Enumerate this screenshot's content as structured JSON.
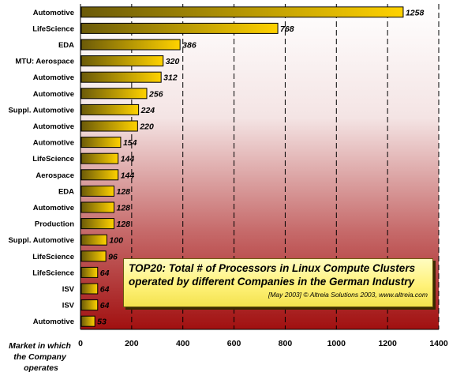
{
  "chart_data": {
    "type": "bar",
    "orientation": "horizontal",
    "categories": [
      "Automotive",
      "LifeScience",
      "EDA",
      "MTU: Aerospace",
      "Automotive",
      "Automotive",
      "Suppl. Automotive",
      "Automotive",
      "Automotive",
      "LifeScience",
      "Aerospace",
      "EDA",
      "Automotive",
      "Production",
      "Suppl. Automotive",
      "LifeScience",
      "LifeScience",
      "ISV",
      "ISV",
      "Automotive"
    ],
    "values": [
      1258,
      768,
      386,
      320,
      312,
      256,
      224,
      220,
      154,
      144,
      144,
      128,
      128,
      128,
      100,
      96,
      64,
      64,
      64,
      53
    ],
    "xlabel": "Market in which the Company operates",
    "xlim": [
      0,
      1400
    ],
    "xticks": [
      0,
      200,
      400,
      600,
      800,
      1000,
      1200,
      1400
    ],
    "grid": "vertical dashed",
    "colors": {
      "bar_light": "#ffd200",
      "bar_dark": "#6b5a08",
      "background_top": "#ffffff",
      "background_bottom": "#a11010"
    }
  },
  "annotation": {
    "title_line1": "TOP20: Total # of Processors in Linux Compute Clusters",
    "title_line2": "operated by different Companies in the German Industry",
    "source": "[May 2003]  © Altreia Solutions 2003, www.altreia.com"
  }
}
